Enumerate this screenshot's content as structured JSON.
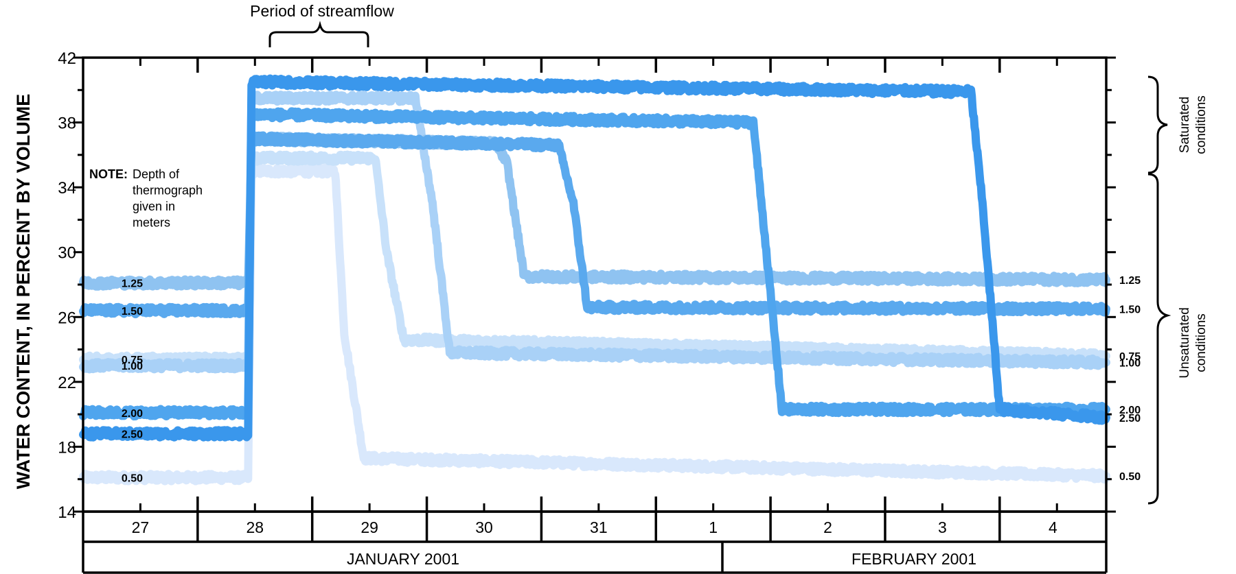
{
  "chart_data": {
    "type": "line",
    "title": "",
    "ylabel": "WATER CONTENT,  IN PERCENT BY VOLUME",
    "xlabel": "",
    "ylim": [
      14,
      42
    ],
    "yticks": [
      "14",
      "18",
      "22",
      "26",
      "30",
      "34",
      "38",
      "42"
    ],
    "x_units": "days since 00:00 on 27 January 2001",
    "xlim": [
      0,
      8.93
    ],
    "days": [
      "27",
      "28",
      "29",
      "30",
      "31",
      "1",
      "2",
      "3",
      "4"
    ],
    "months": [
      "JANUARY 2001",
      "FEBRUARY 2001"
    ],
    "note_label": "NOTE:",
    "note_lines": [
      "Depth of",
      "thermograph",
      "given in",
      "meters"
    ],
    "period_label": "Period of streamflow",
    "period_range": [
      1.45,
      2.2
    ],
    "saturated_label": [
      "Saturated",
      "conditions"
    ],
    "unsaturated_label": [
      "Unsaturated",
      "conditions"
    ],
    "grid": false,
    "series": [
      {
        "name": "1.25",
        "color": "#8fc3f1",
        "x": [
          0,
          1.44,
          1.47,
          3.6,
          3.7,
          3.85,
          8.93
        ],
        "y": [
          28.1,
          28.1,
          37.0,
          36.7,
          35.5,
          28.5,
          28.3
        ]
      },
      {
        "name": "1.50",
        "color": "#5aa9ee",
        "x": [
          0,
          1.44,
          1.47,
          4.15,
          4.28,
          4.4,
          8.93
        ],
        "y": [
          26.4,
          26.4,
          37.0,
          36.6,
          33.0,
          26.6,
          26.5
        ]
      },
      {
        "name": "0.75",
        "color": "#c8e1fa",
        "x": [
          0,
          1.44,
          1.47,
          2.55,
          2.65,
          2.8,
          8.93
        ],
        "y": [
          23.4,
          23.4,
          35.8,
          35.8,
          30.0,
          24.6,
          23.6
        ]
      },
      {
        "name": "1.00",
        "color": "#a9d1f7",
        "x": [
          0,
          1.44,
          1.47,
          2.9,
          3.05,
          3.2,
          8.93
        ],
        "y": [
          23.0,
          23.0,
          39.5,
          39.5,
          33.0,
          23.8,
          23.2
        ]
      },
      {
        "name": "2.00",
        "color": "#4fa5ee",
        "x": [
          0,
          1.44,
          1.47,
          5.85,
          5.95,
          6.1,
          8.93
        ],
        "y": [
          20.1,
          20.1,
          38.5,
          38.0,
          31.0,
          20.3,
          20.3
        ]
      },
      {
        "name": "2.50",
        "color": "#3a97ec",
        "x": [
          0,
          1.44,
          1.47,
          7.75,
          7.85,
          8.0,
          8.93
        ],
        "y": [
          18.8,
          18.8,
          40.5,
          39.9,
          33.0,
          20.3,
          19.8
        ]
      },
      {
        "name": "0.50",
        "color": "#d9e8fc",
        "x": [
          0,
          1.44,
          1.47,
          2.2,
          2.28,
          2.45,
          8.93
        ],
        "y": [
          16.1,
          16.1,
          35.0,
          35.0,
          25.0,
          17.3,
          16.2
        ]
      }
    ],
    "left_labels": [
      "1.25",
      "1.50",
      "0.75",
      "1.00",
      "2.00",
      "2.50",
      "0.50"
    ],
    "right_labels": [
      "1.25",
      "1.50",
      "0.75",
      "1.00",
      "2.00",
      "2.50",
      "0.50"
    ]
  }
}
